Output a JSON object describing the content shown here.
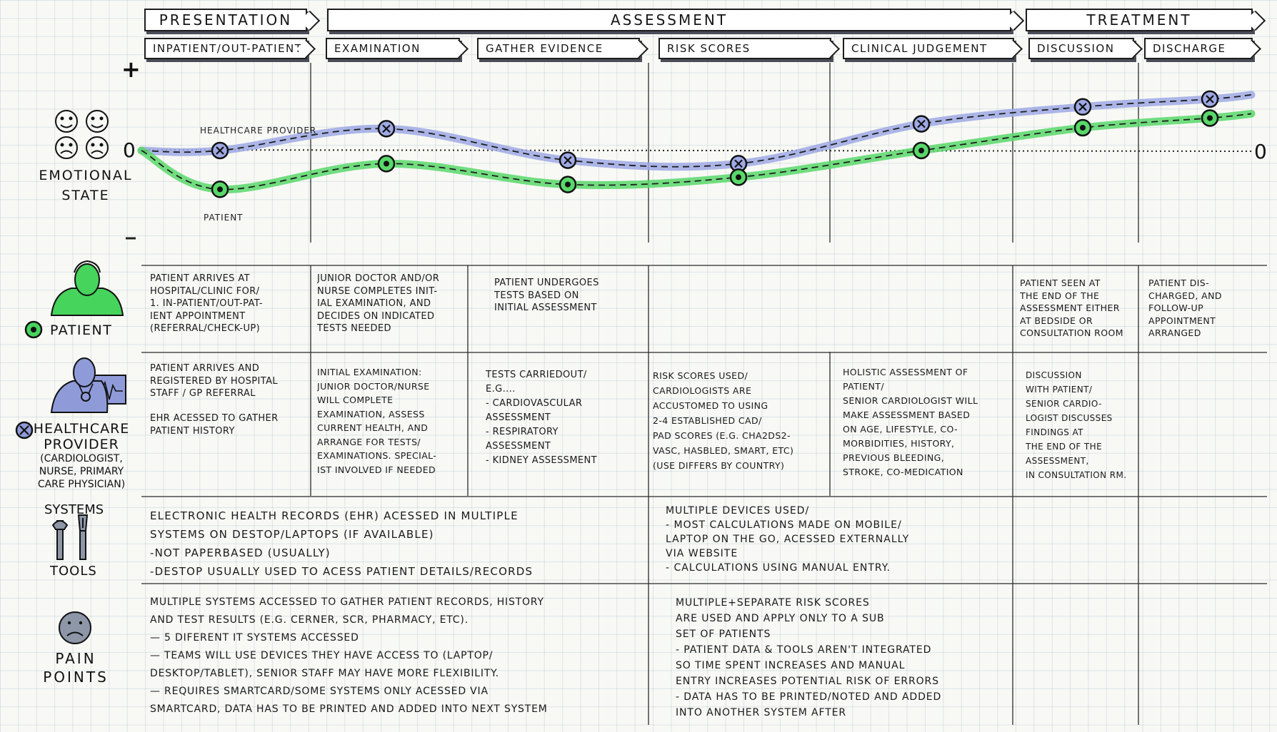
{
  "stages": [
    {
      "label": "PRESENTATION"
    },
    {
      "label": "ASSESSMENT"
    },
    {
      "label": "TREATMENT"
    }
  ],
  "substages": [
    {
      "label": "INPATIENT/OUT-PATIENT"
    },
    {
      "label": "EXAMINATION"
    },
    {
      "label": "GATHER EVIDENCE"
    },
    {
      "label": "RISK SCORES"
    },
    {
      "label": "CLINICAL JUDGEMENT"
    },
    {
      "label": "DISCUSSION"
    },
    {
      "label": "DISCHARGE"
    }
  ],
  "emotional_state": {
    "label_line1": "EMOTIONAL",
    "label_line2": "STATE",
    "plus": "+",
    "minus": "–",
    "zero_left": "0",
    "zero_right": "0",
    "healthcare_provider_label": "HEALTHCARE PROVIDER",
    "patient_label": "PATIENT"
  },
  "chart_data": {
    "type": "line",
    "x": [
      "INPATIENT/OUT-PATIENT",
      "EXAMINATION",
      "GATHER EVIDENCE",
      "RISK SCORES",
      "CLINICAL JUDGEMENT",
      "DISCUSSION",
      "DISCHARGE"
    ],
    "series": [
      {
        "name": "HEALTHCARE PROVIDER",
        "values": [
          0,
          0.45,
          -0.2,
          -0.27,
          0.55,
          0.9,
          1.06
        ],
        "color": "#9fa9e4",
        "marker": "cross"
      },
      {
        "name": "PATIENT",
        "values": [
          -0.8,
          -0.27,
          -0.7,
          -0.55,
          0,
          0.47,
          0.67
        ],
        "color": "#59d86a",
        "marker": "dot"
      }
    ],
    "ylim": [
      -1.5,
      1.5
    ]
  },
  "rows": {
    "patient": {
      "label": "PATIENT",
      "cells": [
        "PATIENT ARRIVES AT\nHOSPITAL/CLINIC FOR/\n1. IN-PATIENT/OUT-PAT-\nIENT APPOINTMENT\n(REFERRAL/CHECK-UP)",
        "JUNIOR DOCTOR AND/OR\nNURSE COMPLETES INIT-\nIAL EXAMINATION, AND\nDECIDES ON INDICATED\nTESTS NEEDED",
        "PATIENT UNDERGOES\nTESTS BASED ON\nINITIAL ASSESSMENT",
        "PATIENT SEEN AT\nTHE END OF THE\nASSESSMENT EITHER\nAT BEDSIDE OR\nCONSULTATION ROOM",
        "PATIENT DIS-\nCHARGED, AND\nFOLLOW-UP\nAPPOINTMENT\nARRANGED"
      ]
    },
    "provider": {
      "label_line1": "HEALTHCARE",
      "label_line2": "PROVIDER",
      "label_sub": "(CARDIOLOGIST,\nNURSE, PRIMARY\nCARE PHYSICIAN)",
      "cells": [
        "PATIENT ARRIVES AND\nREGISTERED BY HOSPITAL\nSTAFF / GP REFERRAL\n\nEHR ACESSED TO GATHER\nPATIENT HISTORY",
        "INITIAL EXAMINATION:\nJUNIOR DOCTOR/NURSE\nWILL COMPLETE\nEXAMINATION, ASSESS\nCURRENT HEALTH, AND\nARRANGE FOR TESTS/\nEXAMINATIONS. SPECIAL-\nIST INVOLVED IF NEEDED",
        "TESTS CARRIEDOUT/\nE.G....\n- CARDIOVASCULAR\n  ASSESSMENT\n- RESPIRATORY\n  ASSESSMENT\n- KIDNEY ASSESSMENT",
        "RISK SCORES USED/\nCARDIOLOGISTS ARE\nACCUSTOMED TO USING\n2-4 ESTABLISHED CAD/\nPAD SCORES (E.G. CHA2DS2-\nVASC, HASBLED, SMART, ETC)\n(USE DIFFERS BY COUNTRY)",
        "HOLISTIC ASSESSMENT OF\nPATIENT/\nSENIOR CARDIOLOGIST WILL\nMAKE ASSESSMENT BASED\nON AGE, LIFESTYLE, CO-\nMORBIDITIES, HISTORY,\nPREVIOUS BLEEDING,\nSTROKE, CO-MEDICATION",
        "DISCUSSION\nWITH PATIENT/\nSENIOR CARDIO-\nLOGIST DISCUSSES\nFINDINGS AT\nTHE END OF THE\nASSESSMENT,\nIN CONSULTATION RM."
      ]
    },
    "systems": {
      "label_line1": "SYSTEMS",
      "label_line2": "TOOLS",
      "cells": [
        "ELECTRONIC HEALTH RECORDS (EHR) ACESSED IN MULTIPLE\nSYSTEMS ON DESTOP/LAPTOPS (IF AVAILABLE)\n-NOT PAPERBASED (USUALLY)\n-DESTOP USUALLY USED TO ACESS PATIENT DETAILS/RECORDS",
        "MULTIPLE DEVICES USED/\n- MOST CALCULATIONS MADE ON MOBILE/\n  LAPTOP ON THE GO, ACESSED EXTERNALLY\n  VIA WEBSITE\n- CALCULATIONS USING MANUAL ENTRY."
      ]
    },
    "pain": {
      "label_line1": "PAIN",
      "label_line2": "POINTS",
      "cells": [
        "MULTIPLE SYSTEMS ACCESSED TO GATHER PATIENT RECORDS, HISTORY\nAND TEST RESULTS (E.G. CERNER, SCR, PHARMACY, ETC).\n— 5 DIFERENT IT SYSTEMS ACCESSED\n— TEAMS WILL USE DEVICES THEY HAVE ACCESS TO (LAPTOP/\n  DESKTOP/TABLET), SENIOR STAFF MAY HAVE MORE FLEXIBILITY.\n— REQUIRES SMARTCARD/SOME SYSTEMS ONLY ACESSED VIA\n  SMARTCARD, DATA HAS TO BE PRINTED AND ADDED INTO NEXT SYSTEM",
        "MULTIPLE+SEPARATE RISK SCORES\nARE USED AND APPLY ONLY TO A SUB\nSET OF PATIENTS\n- PATIENT DATA & TOOLS AREN'T INTEGRATED\n  SO TIME SPENT INCREASES AND MANUAL\n  ENTRY INCREASES POTENTIAL RISK OF ERRORS\n- DATA HAS TO BE PRINTED/NOTED AND ADDED\n  INTO ANOTHER SYSTEM AFTER"
      ]
    }
  },
  "colors": {
    "patient": "#46d45c",
    "provider": "#8f9bd9",
    "ink": "#1b1b1b",
    "shadow": "#4a4d58",
    "face": "#8d97a8"
  },
  "icons": {
    "faces": "emotion-faces-icon",
    "patient": "patient-person-icon",
    "provider": "healthcare-provider-icon",
    "tools": "tools-icon",
    "sad": "sad-face-icon"
  }
}
